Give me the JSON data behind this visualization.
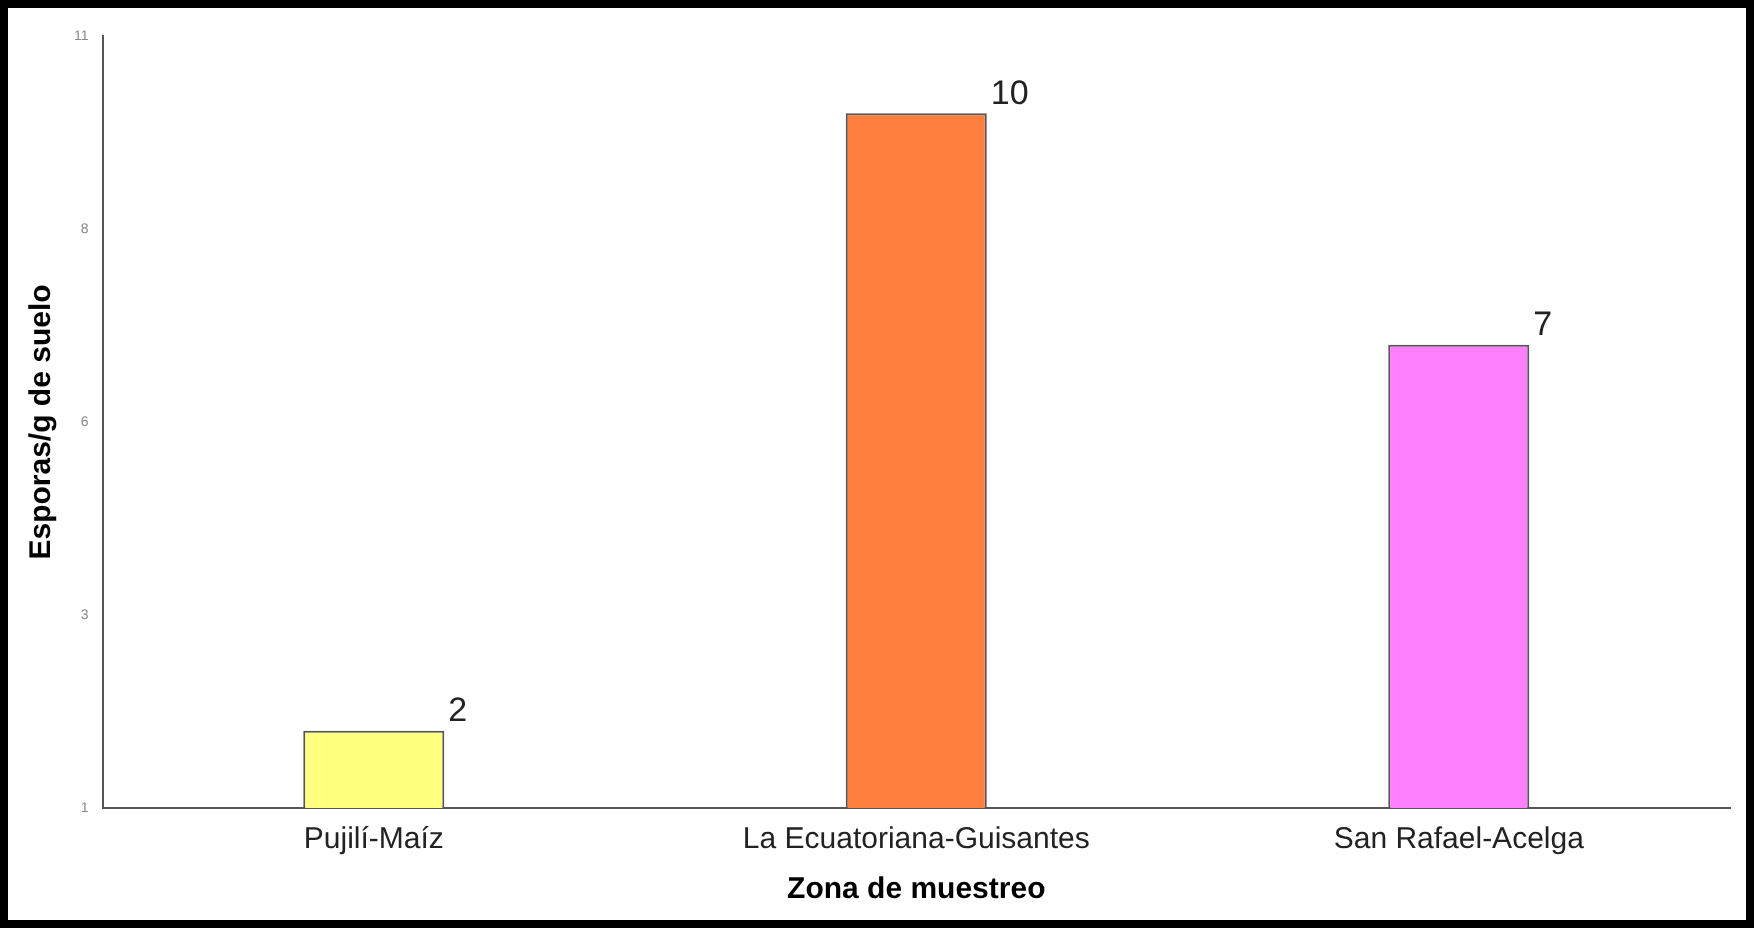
{
  "chart_data": {
    "type": "bar",
    "xlabel": "Zona de muestreo",
    "ylabel": "Esporas/g de suelo",
    "categories": [
      "Pujilí-Maíz",
      "La Ecuatoriana-Guisantes",
      "San Rafael-Acelga"
    ],
    "values": [
      2,
      10,
      7
    ],
    "colors": [
      "#ffff80",
      "#ff7f40",
      "#ff80ff"
    ],
    "ylim": [
      1,
      11
    ],
    "yticks": [
      1,
      {
        "value": 3.5,
        "label": "3"
      },
      6,
      {
        "value": 8.5,
        "label": "8"
      },
      11
    ],
    "grid": false,
    "legend": false,
    "data_labels": true
  }
}
